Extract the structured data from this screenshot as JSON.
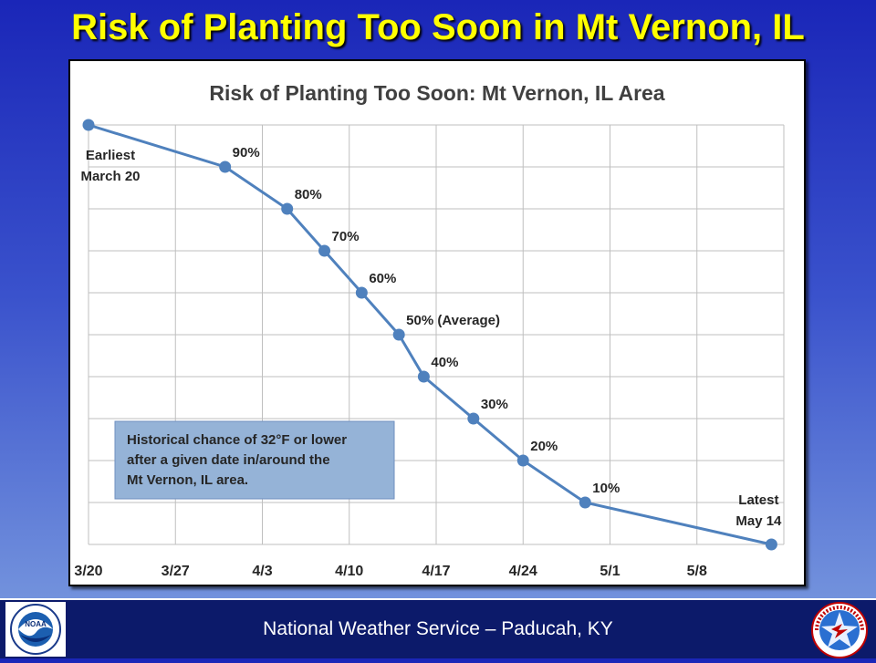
{
  "slide": {
    "title": "Risk of Planting Too Soon in Mt Vernon, IL",
    "footer": "National Weather Service – Paducah, KY"
  },
  "logos": {
    "left": "noaa-logo",
    "right": "nws-logo"
  },
  "colors": {
    "series": "#4f81bd",
    "title": "#ffff00",
    "textbox": "#95b3d7",
    "footer": "#0c1a6a"
  },
  "chart_data": {
    "type": "line",
    "title": "Risk of Planting Too Soon: Mt Vernon, IL Area",
    "xlabel": "",
    "ylabel": "",
    "x_ticks": [
      {
        "value": "3/20",
        "label": "3/20"
      },
      {
        "value": "3/27",
        "label": "3/27"
      },
      {
        "value": "4/3",
        "label": "4/3"
      },
      {
        "value": "4/10",
        "label": "4/10"
      },
      {
        "value": "4/17",
        "label": "4/17"
      },
      {
        "value": "4/24",
        "label": "4/24"
      },
      {
        "value": "5/1",
        "label": "5/1"
      },
      {
        "value": "5/8",
        "label": "5/8"
      }
    ],
    "xlim": [
      "3/20",
      "5/15"
    ],
    "ylim": [
      0,
      100
    ],
    "grid": true,
    "points": [
      {
        "x": "3/20",
        "y": 100,
        "label": "Earliest\nMarch 20"
      },
      {
        "x": "3/31",
        "y": 90,
        "label": "90%"
      },
      {
        "x": "4/5",
        "y": 80,
        "label": "80%"
      },
      {
        "x": "4/8",
        "y": 70,
        "label": "70%"
      },
      {
        "x": "4/11",
        "y": 60,
        "label": "60%"
      },
      {
        "x": "4/14",
        "y": 50,
        "label": "50% (Average)"
      },
      {
        "x": "4/16",
        "y": 40,
        "label": "40%"
      },
      {
        "x": "4/20",
        "y": 30,
        "label": "30%"
      },
      {
        "x": "4/24",
        "y": 20,
        "label": "20%"
      },
      {
        "x": "4/29",
        "y": 10,
        "label": "10%"
      },
      {
        "x": "5/14",
        "y": 0,
        "label": "Latest\nMay 14"
      }
    ],
    "annotation": "Historical chance of 32°F or lower after a given date in/around the Mt Vernon, IL area."
  }
}
